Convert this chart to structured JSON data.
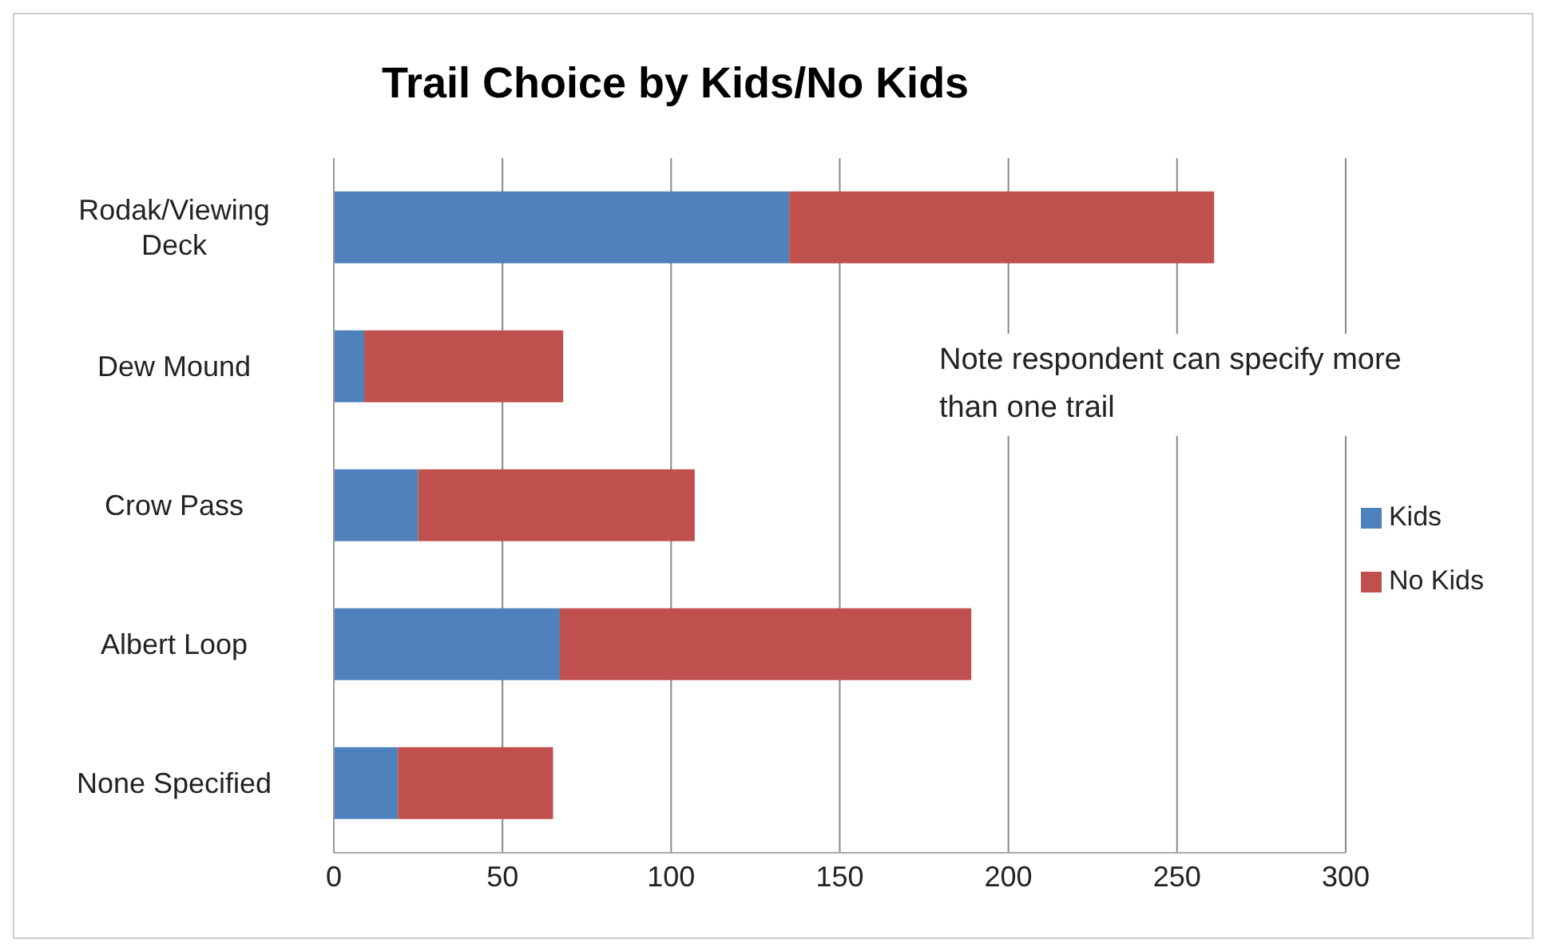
{
  "chart_data": {
    "type": "bar",
    "orientation": "horizontal",
    "stacked": true,
    "title": "Trail Choice by Kids/No Kids",
    "categories": [
      "Rodak/Viewing Deck",
      "Dew Mound",
      "Crow Pass",
      "Albert Loop",
      "None Specified"
    ],
    "series": [
      {
        "name": "Kids",
        "color": "#4f81bd",
        "values": [
          135,
          9,
          25,
          67,
          19
        ]
      },
      {
        "name": "No Kids",
        "color": "#c0504d",
        "values": [
          126,
          59,
          82,
          122,
          46
        ]
      }
    ],
    "xlim": [
      0,
      300
    ],
    "xticks": [
      0,
      50,
      100,
      150,
      200,
      250,
      300
    ],
    "grid": "x",
    "legend": "right",
    "annotations": [
      "Note respondent can specify more than one trail"
    ]
  }
}
